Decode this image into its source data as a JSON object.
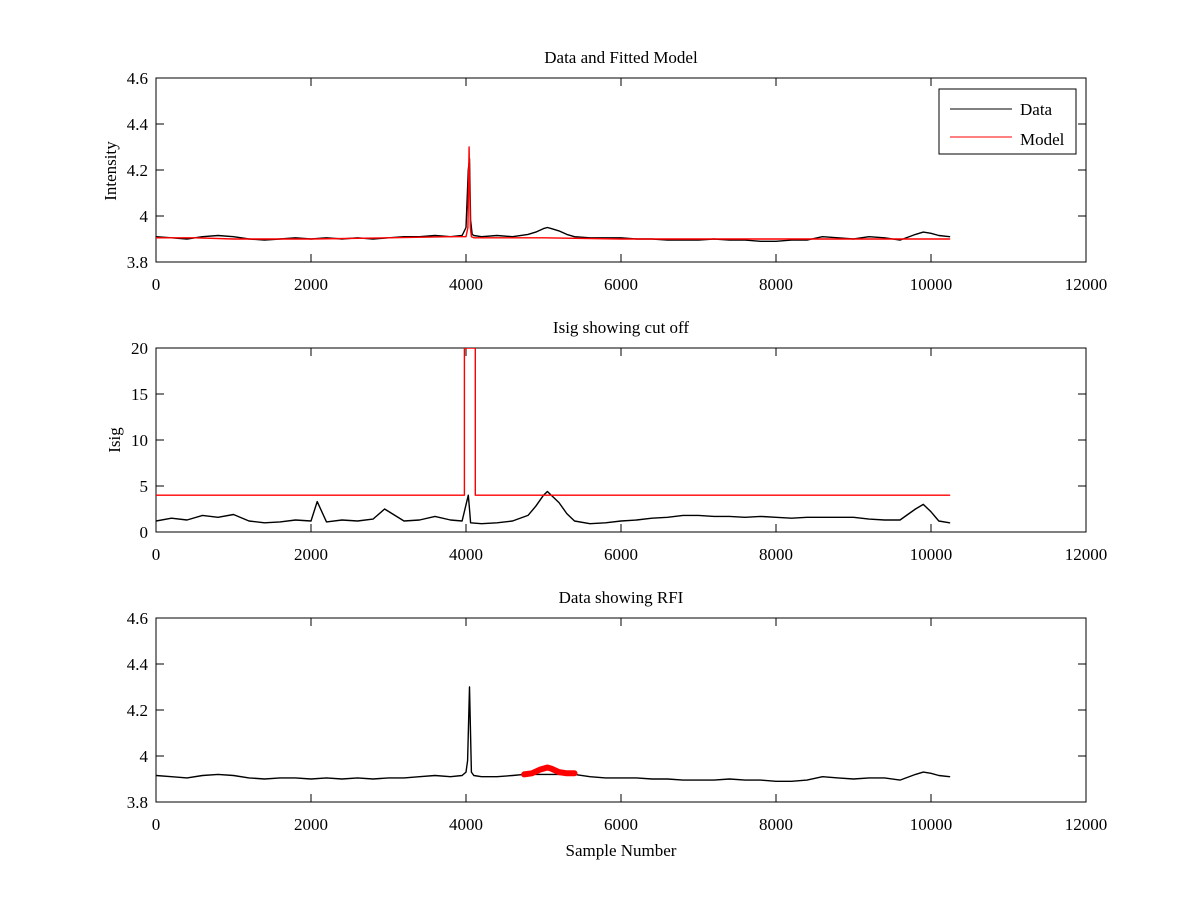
{
  "figure": {
    "xlabel": "Sample Number"
  },
  "chart_data": [
    {
      "type": "line",
      "title": "Data and Fitted Model",
      "xlabel": "",
      "ylabel": "Intensity",
      "xlim": [
        0,
        12000
      ],
      "ylim": [
        3.8,
        4.6
      ],
      "xticks": [
        0,
        2000,
        4000,
        6000,
        8000,
        10000,
        12000
      ],
      "yticks": [
        3.8,
        4,
        4.2,
        4.4,
        4.6
      ],
      "legend": {
        "position": "top-right",
        "entries": [
          "Data",
          "Model"
        ]
      },
      "series": [
        {
          "name": "Data",
          "color": "#000000",
          "x": [
            0,
            200,
            400,
            600,
            800,
            1000,
            1200,
            1400,
            1600,
            1800,
            2000,
            2200,
            2400,
            2600,
            2800,
            3000,
            3200,
            3400,
            3600,
            3800,
            3950,
            4000,
            4030,
            4045,
            4060,
            4080,
            4100,
            4200,
            4400,
            4600,
            4800,
            4900,
            5000,
            5050,
            5100,
            5200,
            5300,
            5400,
            5600,
            5800,
            6000,
            6200,
            6400,
            6600,
            6800,
            7000,
            7200,
            7400,
            7600,
            7800,
            8000,
            8200,
            8400,
            8600,
            8800,
            9000,
            9200,
            9400,
            9600,
            9800,
            9900,
            10000,
            10100,
            10240
          ],
          "y": [
            3.91,
            3.905,
            3.9,
            3.91,
            3.915,
            3.91,
            3.9,
            3.895,
            3.9,
            3.905,
            3.9,
            3.905,
            3.9,
            3.905,
            3.9,
            3.905,
            3.91,
            3.91,
            3.915,
            3.91,
            3.915,
            3.95,
            4.2,
            4.25,
            3.98,
            3.92,
            3.915,
            3.91,
            3.915,
            3.91,
            3.92,
            3.93,
            3.945,
            3.95,
            3.945,
            3.935,
            3.92,
            3.91,
            3.905,
            3.905,
            3.905,
            3.9,
            3.9,
            3.895,
            3.895,
            3.895,
            3.9,
            3.895,
            3.895,
            3.89,
            3.89,
            3.895,
            3.895,
            3.91,
            3.905,
            3.9,
            3.91,
            3.905,
            3.895,
            3.92,
            3.93,
            3.925,
            3.915,
            3.91
          ]
        },
        {
          "name": "Model",
          "color": "#ff0000",
          "x": [
            0,
            500,
            1000,
            2000,
            3000,
            3800,
            4000,
            4025,
            4040,
            4055,
            4070,
            4100,
            5000,
            6000,
            7000,
            8000,
            9000,
            10240
          ],
          "y": [
            3.905,
            3.905,
            3.9,
            3.9,
            3.905,
            3.91,
            3.91,
            3.95,
            4.3,
            3.95,
            3.91,
            3.905,
            3.905,
            3.9,
            3.9,
            3.9,
            3.9,
            3.9
          ]
        }
      ]
    },
    {
      "type": "line",
      "title": "Isig showing cut off",
      "xlabel": "",
      "ylabel": "Isig",
      "xlim": [
        0,
        12000
      ],
      "ylim": [
        0,
        20
      ],
      "xticks": [
        0,
        2000,
        4000,
        6000,
        8000,
        10000,
        12000
      ],
      "yticks": [
        0,
        5,
        10,
        15,
        20
      ],
      "series": [
        {
          "color": "#000000",
          "x": [
            0,
            200,
            400,
            600,
            800,
            1000,
            1200,
            1400,
            1600,
            1800,
            2000,
            2080,
            2200,
            2400,
            2600,
            2800,
            2950,
            3200,
            3400,
            3600,
            3800,
            3950,
            4030,
            4045,
            4060,
            4200,
            4400,
            4600,
            4800,
            4900,
            5000,
            5050,
            5100,
            5200,
            5300,
            5400,
            5600,
            5800,
            6000,
            6200,
            6400,
            6600,
            6800,
            7000,
            7200,
            7400,
            7600,
            7800,
            8000,
            8200,
            8400,
            8600,
            8800,
            9000,
            9200,
            9400,
            9600,
            9800,
            9900,
            10000,
            10100,
            10240
          ],
          "y": [
            1.2,
            1.5,
            1.3,
            1.8,
            1.6,
            1.9,
            1.2,
            1.0,
            1.1,
            1.3,
            1.2,
            3.3,
            1.1,
            1.3,
            1.2,
            1.4,
            2.5,
            1.2,
            1.3,
            1.7,
            1.3,
            1.2,
            4.0,
            2.5,
            1.0,
            0.9,
            1.0,
            1.2,
            1.8,
            2.8,
            4.0,
            4.4,
            4.0,
            3.2,
            2.0,
            1.2,
            0.9,
            1.0,
            1.2,
            1.3,
            1.5,
            1.6,
            1.8,
            1.8,
            1.7,
            1.7,
            1.6,
            1.7,
            1.6,
            1.5,
            1.6,
            1.6,
            1.6,
            1.6,
            1.4,
            1.3,
            1.3,
            2.5,
            3.0,
            2.2,
            1.2,
            1.0
          ]
        },
        {
          "color": "#ff0000",
          "x": [
            0,
            3980,
            3980,
            4120,
            4120,
            10240
          ],
          "y": [
            4,
            4,
            20,
            20,
            4,
            4
          ]
        }
      ]
    },
    {
      "type": "line",
      "title": "Data showing RFI",
      "xlabel": "Sample Number",
      "ylabel": "",
      "xlim": [
        0,
        12000
      ],
      "ylim": [
        3.8,
        4.6
      ],
      "xticks": [
        0,
        2000,
        4000,
        6000,
        8000,
        10000,
        12000
      ],
      "yticks": [
        3.8,
        4,
        4.2,
        4.4,
        4.6
      ],
      "series": [
        {
          "color": "#000000",
          "x": [
            0,
            200,
            400,
            600,
            800,
            1000,
            1200,
            1400,
            1600,
            1800,
            2000,
            2200,
            2400,
            2600,
            2800,
            3000,
            3200,
            3400,
            3600,
            3800,
            3950,
            4000,
            4020,
            4045,
            4070,
            4100,
            4200,
            4400,
            4600,
            4750,
            5400,
            5600,
            5800,
            6000,
            6200,
            6400,
            6600,
            6800,
            7000,
            7200,
            7400,
            7600,
            7800,
            8000,
            8200,
            8400,
            8600,
            8800,
            9000,
            9200,
            9400,
            9600,
            9800,
            9900,
            10000,
            10100,
            10240
          ],
          "y": [
            3.915,
            3.91,
            3.905,
            3.915,
            3.92,
            3.915,
            3.905,
            3.9,
            3.905,
            3.905,
            3.9,
            3.905,
            3.9,
            3.905,
            3.9,
            3.905,
            3.905,
            3.91,
            3.915,
            3.91,
            3.915,
            3.93,
            3.98,
            4.3,
            3.93,
            3.915,
            3.91,
            3.91,
            3.915,
            3.92,
            3.92,
            3.91,
            3.905,
            3.905,
            3.905,
            3.9,
            3.9,
            3.895,
            3.895,
            3.895,
            3.9,
            3.895,
            3.895,
            3.89,
            3.89,
            3.895,
            3.91,
            3.905,
            3.9,
            3.905,
            3.905,
            3.895,
            3.92,
            3.93,
            3.925,
            3.915,
            3.91
          ]
        },
        {
          "color": "#ff0000",
          "x": [
            4750,
            4850,
            4950,
            5050,
            5100,
            5200,
            5300,
            5400
          ],
          "y": [
            3.92,
            3.925,
            3.94,
            3.95,
            3.945,
            3.93,
            3.925,
            3.925
          ]
        }
      ]
    }
  ]
}
